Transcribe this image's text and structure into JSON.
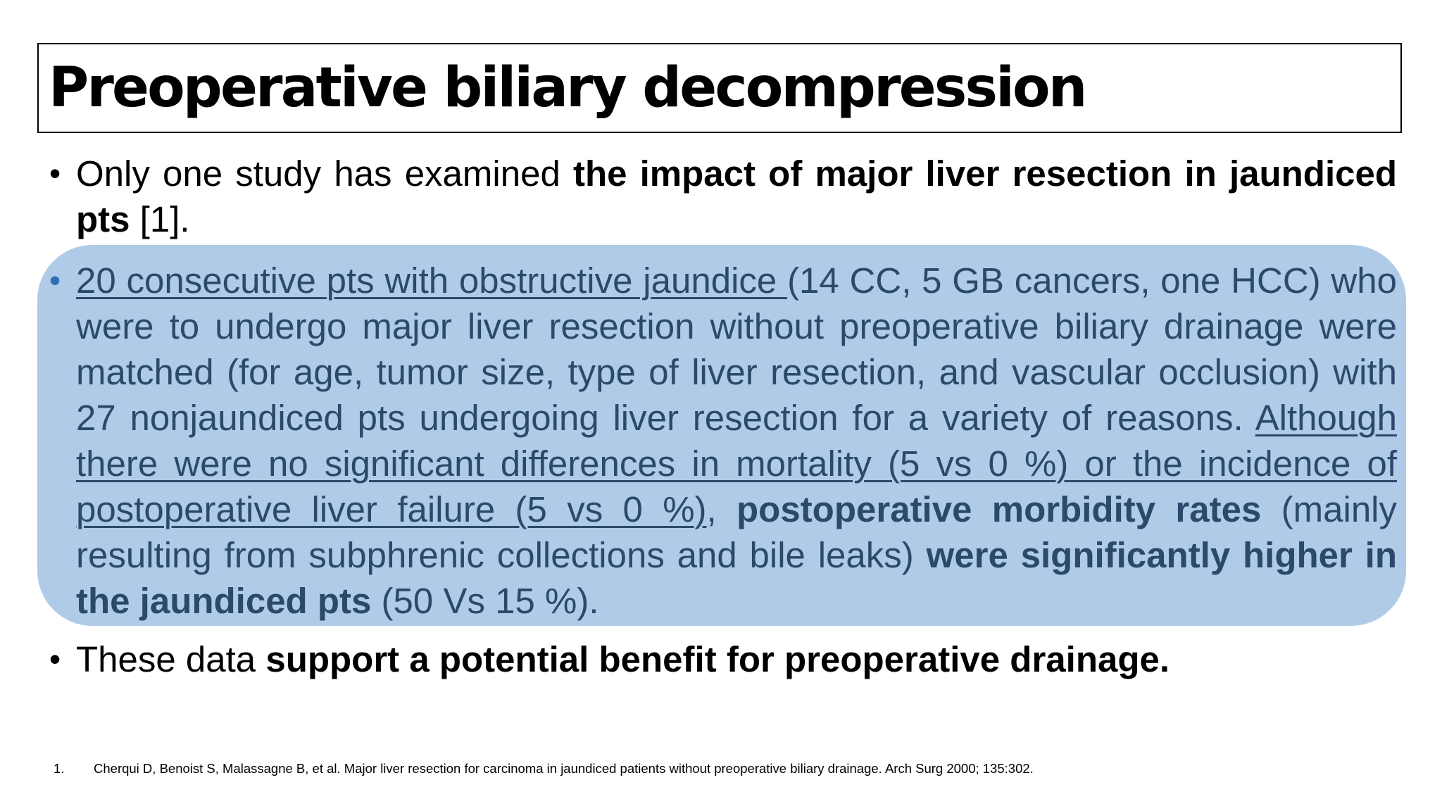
{
  "title": "Preoperative biliary decompression",
  "bullet1": {
    "t1": "Only one study has examined ",
    "b1": "the impact of major liver resection in jaundiced pts",
    "t2": " [1]."
  },
  "bullet2": {
    "u1": "20 consecutive pts with obstructive jaundice ",
    "t1": "(14 CC, 5 GB cancers, one HCC) who were to undergo major liver resection without preoperative biliary drainage were matched (for age, tumor size, type of liver resection, and vascular occlusion) with 27 nonjaundiced pts undergoing liver resection for a variety of reasons. ",
    "u2": "Although there were no significant differences in mortality (5 vs 0 %) or the incidence of postoperative liver failure (5 vs 0 %)",
    "t2": ", ",
    "b1": "postoperative morbidity rates",
    "t3": " (mainly resulting from subphrenic collections and bile leaks) ",
    "b2": "were significantly higher in the jaundiced pts",
    "t4": " (50 Vs 15 %)."
  },
  "bullet3": {
    "t1": "These data ",
    "b1": "support a potential benefit for preoperative drainage."
  },
  "footnote": {
    "number": "1.",
    "text": "Cherqui D, Benoist S, Malassagne B, et al. Major liver resection for carcinoma in jaundiced patients without preoperative biliary drainage. Arch Surg 2000; 135:302."
  },
  "colors": {
    "highlight_fill": "#afcbe8",
    "highlight_text": "#2b4a6b",
    "text": "#000000"
  }
}
